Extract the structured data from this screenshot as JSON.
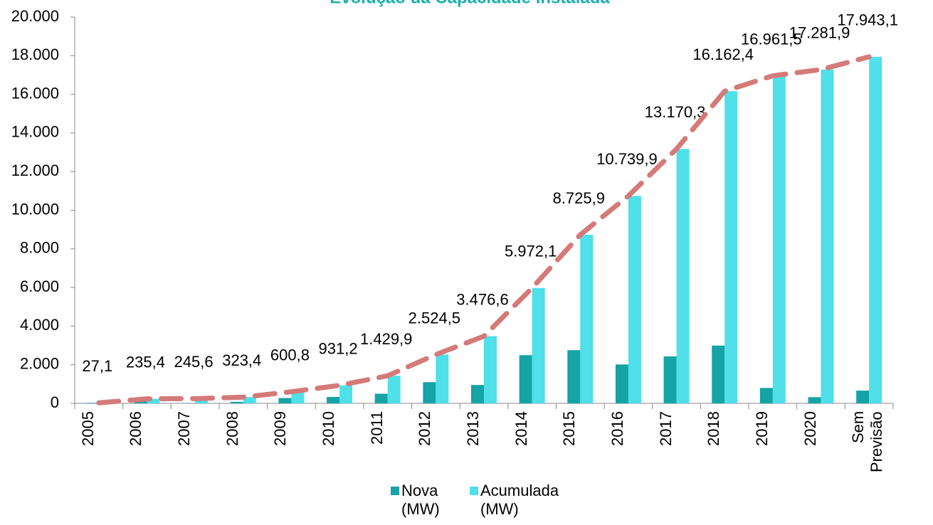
{
  "chart_data": {
    "type": "bar",
    "title": "Evolução da Capacidade Instalada",
    "categories": [
      "2005",
      "2006",
      "2007",
      "2008",
      "2009",
      "2010",
      "2011",
      "2012",
      "2013",
      "2014",
      "2015",
      "2016",
      "2017",
      "2018",
      "2019",
      "2020",
      "Sem Previsão"
    ],
    "series": [
      {
        "name": "Nova (MW)",
        "color": "#15a3a6",
        "values": [
          27,
          208,
          10,
          78,
          277,
          330,
          499,
          1095,
          952,
          2496,
          2754,
          2014,
          2430,
          2992,
          799,
          320,
          661
        ]
      },
      {
        "name": "Acumulada (MW)",
        "color": "#4fe0ea",
        "values": [
          27.1,
          235.4,
          245.6,
          323.4,
          600.8,
          931.2,
          1429.9,
          2524.5,
          3476.6,
          5972.1,
          8725.9,
          10739.9,
          13170.3,
          16162.4,
          16961.5,
          17281.9,
          17943.1
        ],
        "value_labels": [
          "27,1",
          "235,4",
          "245,6",
          "323,4",
          "600,8",
          "931,2",
          "1.429,9",
          "2.524,5",
          "3.476,6",
          "5.972,1",
          "8.725,9",
          "10.739,9",
          "13.170,3",
          "16.162,4",
          "16.961,5",
          "17.281,9",
          "17.943,1"
        ]
      }
    ],
    "trendline": {
      "color": "#d47a78",
      "dashed": true
    },
    "ylim": [
      0,
      20000
    ],
    "yticks": [
      0,
      {
        "value": 2000,
        "label": "2.000"
      },
      {
        "value": 4000,
        "label": "4.000"
      },
      {
        "value": 6000,
        "label": "6.000"
      },
      {
        "value": 8000,
        "label": "8.000"
      },
      {
        "value": 10000,
        "label": "10.000"
      },
      {
        "value": 12000,
        "label": "12.000"
      },
      {
        "value": 14000,
        "label": "14.000"
      },
      {
        "value": 16000,
        "label": "16.000"
      },
      {
        "value": 18000,
        "label": "18.000"
      },
      {
        "value": 20000,
        "label": "20.000"
      }
    ],
    "grid": false
  }
}
